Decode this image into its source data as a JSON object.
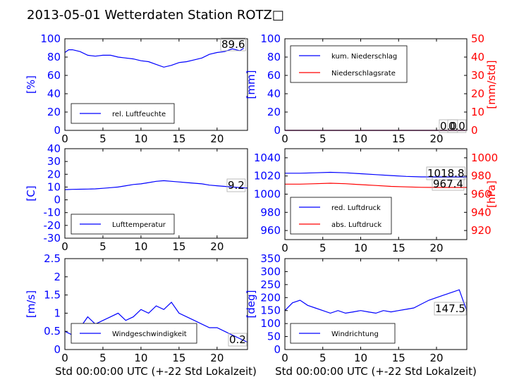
{
  "title": "2013-05-01 Wetterdaten Station ROTZ",
  "title_glyph": "□",
  "xlabel": "Std 00:00:00 UTC (+-22 Std Lokalzeit)",
  "colors": {
    "blue": "#0000ff",
    "red": "#ff0000",
    "frame": "#000000",
    "text": "#000000"
  },
  "chart_data": [
    {
      "id": "humidity",
      "type": "line",
      "xlim": [
        0,
        24
      ],
      "xticks": [
        0,
        5,
        10,
        15,
        20
      ],
      "ylim": [
        0,
        100
      ],
      "yticks": [
        0,
        20,
        40,
        60,
        80,
        100
      ],
      "ylabel": "[%]",
      "annotations": [
        "89.6"
      ],
      "legend": {
        "placement": "lower-left"
      },
      "series": [
        {
          "name": "rel. Luftfeuchte",
          "color": "#0000ff",
          "x": [
            0,
            0.5,
            1,
            2,
            3,
            4,
            5,
            6,
            7,
            8,
            9,
            10,
            11,
            12,
            13,
            14,
            15,
            16,
            17,
            18,
            19,
            20,
            21,
            22,
            23,
            23.5
          ],
          "y": [
            85,
            88,
            88,
            86,
            82,
            81,
            82,
            82,
            80,
            79,
            78,
            76,
            75,
            72,
            69,
            71,
            74,
            75,
            77,
            79,
            83,
            85,
            86,
            89,
            87,
            89.6
          ]
        }
      ]
    },
    {
      "id": "precip",
      "type": "line",
      "xlim": [
        0,
        24
      ],
      "xticks": [
        0,
        5,
        10,
        15,
        20
      ],
      "ylim": [
        0,
        100
      ],
      "yticks": [
        0,
        20,
        40,
        60,
        80,
        100
      ],
      "ylabel": "[mm]",
      "ylim2": [
        0,
        50
      ],
      "yticks2": [
        0,
        10,
        20,
        30,
        40,
        50
      ],
      "ylabel2": "[mm/std]",
      "annotations": [
        "0.0",
        "0.0"
      ],
      "legend": {
        "placement": "upper-left"
      },
      "series": [
        {
          "name": "kum. Niederschlag",
          "color": "#0000ff",
          "axis": "left",
          "x": [
            0,
            24
          ],
          "y": [
            0,
            0
          ]
        },
        {
          "name": "Niederschlagsrate",
          "color": "#ff0000",
          "axis": "right",
          "x": [
            0,
            24
          ],
          "y": [
            0,
            0
          ]
        }
      ]
    },
    {
      "id": "temp",
      "type": "line",
      "xlim": [
        0,
        24
      ],
      "xticks": [
        0,
        5,
        10,
        15,
        20
      ],
      "ylim": [
        -30,
        40
      ],
      "yticks": [
        -30,
        -20,
        -10,
        0,
        10,
        20,
        30,
        40
      ],
      "ylabel": "[C]",
      "annotations": [
        "9.2"
      ],
      "legend": {
        "placement": "lower-left"
      },
      "series": [
        {
          "name": "Lufttemperatur",
          "color": "#0000ff",
          "x": [
            0,
            1,
            2,
            3,
            4,
            5,
            6,
            7,
            8,
            9,
            10,
            11,
            12,
            13,
            14,
            15,
            16,
            17,
            18,
            19,
            20,
            21,
            22,
            23,
            24
          ],
          "y": [
            8,
            8.2,
            8.3,
            8.4,
            8.6,
            9,
            9.5,
            10,
            11,
            12,
            12.5,
            13.5,
            14.5,
            15,
            14.5,
            14,
            13.5,
            13,
            12.5,
            11.5,
            11,
            10.5,
            10,
            9.6,
            9.2
          ]
        }
      ]
    },
    {
      "id": "pressure",
      "type": "line",
      "xlim": [
        0,
        24
      ],
      "xticks": [
        0,
        5,
        10,
        15,
        20
      ],
      "ylim": [
        950,
        1050
      ],
      "yticks": [
        960,
        980,
        1000,
        1020,
        1040
      ],
      "ylabel": "",
      "ylim2": [
        910,
        1010
      ],
      "yticks2": [
        920,
        940,
        960,
        980,
        1000
      ],
      "ylabel2": "[hPa]",
      "annotations": [
        "1018.8",
        "967.4"
      ],
      "legend": {
        "placement": "lower-left"
      },
      "series": [
        {
          "name": "red. Luftdruck",
          "color": "#0000ff",
          "axis": "left",
          "x": [
            0,
            2,
            4,
            6,
            8,
            10,
            12,
            14,
            16,
            18,
            20,
            22,
            24
          ],
          "y": [
            1023,
            1023,
            1023.5,
            1024,
            1023.5,
            1022.5,
            1021.5,
            1020.5,
            1019.5,
            1019,
            1019,
            1019,
            1018.8
          ]
        },
        {
          "name": "abs. Luftdruck",
          "color": "#ff0000",
          "axis": "right",
          "x": [
            0,
            2,
            4,
            6,
            8,
            10,
            12,
            14,
            16,
            18,
            20,
            22,
            24
          ],
          "y": [
            971,
            971,
            971.5,
            972,
            971.5,
            970.5,
            969.5,
            968.5,
            968,
            967.5,
            967.4,
            967.4,
            967.4
          ]
        }
      ]
    },
    {
      "id": "windspeed",
      "type": "line",
      "xlim": [
        0,
        24
      ],
      "xticks": [
        0,
        5,
        10,
        15,
        20
      ],
      "ylim": [
        0,
        2.5
      ],
      "yticks": [
        0,
        0.5,
        1.0,
        1.5,
        2.0,
        2.5
      ],
      "ylabel": "[m/s]",
      "annotations": [
        "0.2"
      ],
      "legend": {
        "placement": "lower-left"
      },
      "series": [
        {
          "name": "Windgeschwindigkeit",
          "color": "#0000ff",
          "x": [
            0,
            1,
            2,
            3,
            4,
            5,
            6,
            7,
            8,
            9,
            10,
            11,
            12,
            13,
            14,
            15,
            16,
            17,
            18,
            19,
            20,
            21,
            22,
            23,
            24
          ],
          "y": [
            0.5,
            0.4,
            0.6,
            0.9,
            0.7,
            0.8,
            0.9,
            1.0,
            0.8,
            0.9,
            1.1,
            1.0,
            1.2,
            1.1,
            1.3,
            1.0,
            0.9,
            0.8,
            0.7,
            0.6,
            0.6,
            0.5,
            0.4,
            0.3,
            0.2
          ]
        }
      ]
    },
    {
      "id": "winddir",
      "type": "line",
      "xlim": [
        0,
        24
      ],
      "xticks": [
        0,
        5,
        10,
        15,
        20
      ],
      "ylim": [
        0,
        350
      ],
      "yticks": [
        0,
        50,
        100,
        150,
        200,
        250,
        300,
        350
      ],
      "ylabel": "[deg]",
      "annotations": [
        "147.5"
      ],
      "legend": {
        "placement": "lower-left"
      },
      "series": [
        {
          "name": "Windrichtung",
          "color": "#0000ff",
          "x": [
            0,
            1,
            2,
            3,
            4,
            5,
            6,
            7,
            8,
            9,
            10,
            11,
            12,
            13,
            14,
            15,
            16,
            17,
            18,
            19,
            20,
            21,
            22,
            23,
            24
          ],
          "y": [
            150,
            180,
            190,
            170,
            160,
            150,
            140,
            150,
            140,
            145,
            150,
            145,
            140,
            150,
            145,
            150,
            155,
            160,
            175,
            190,
            200,
            210,
            220,
            230,
            147.5
          ]
        }
      ]
    }
  ]
}
